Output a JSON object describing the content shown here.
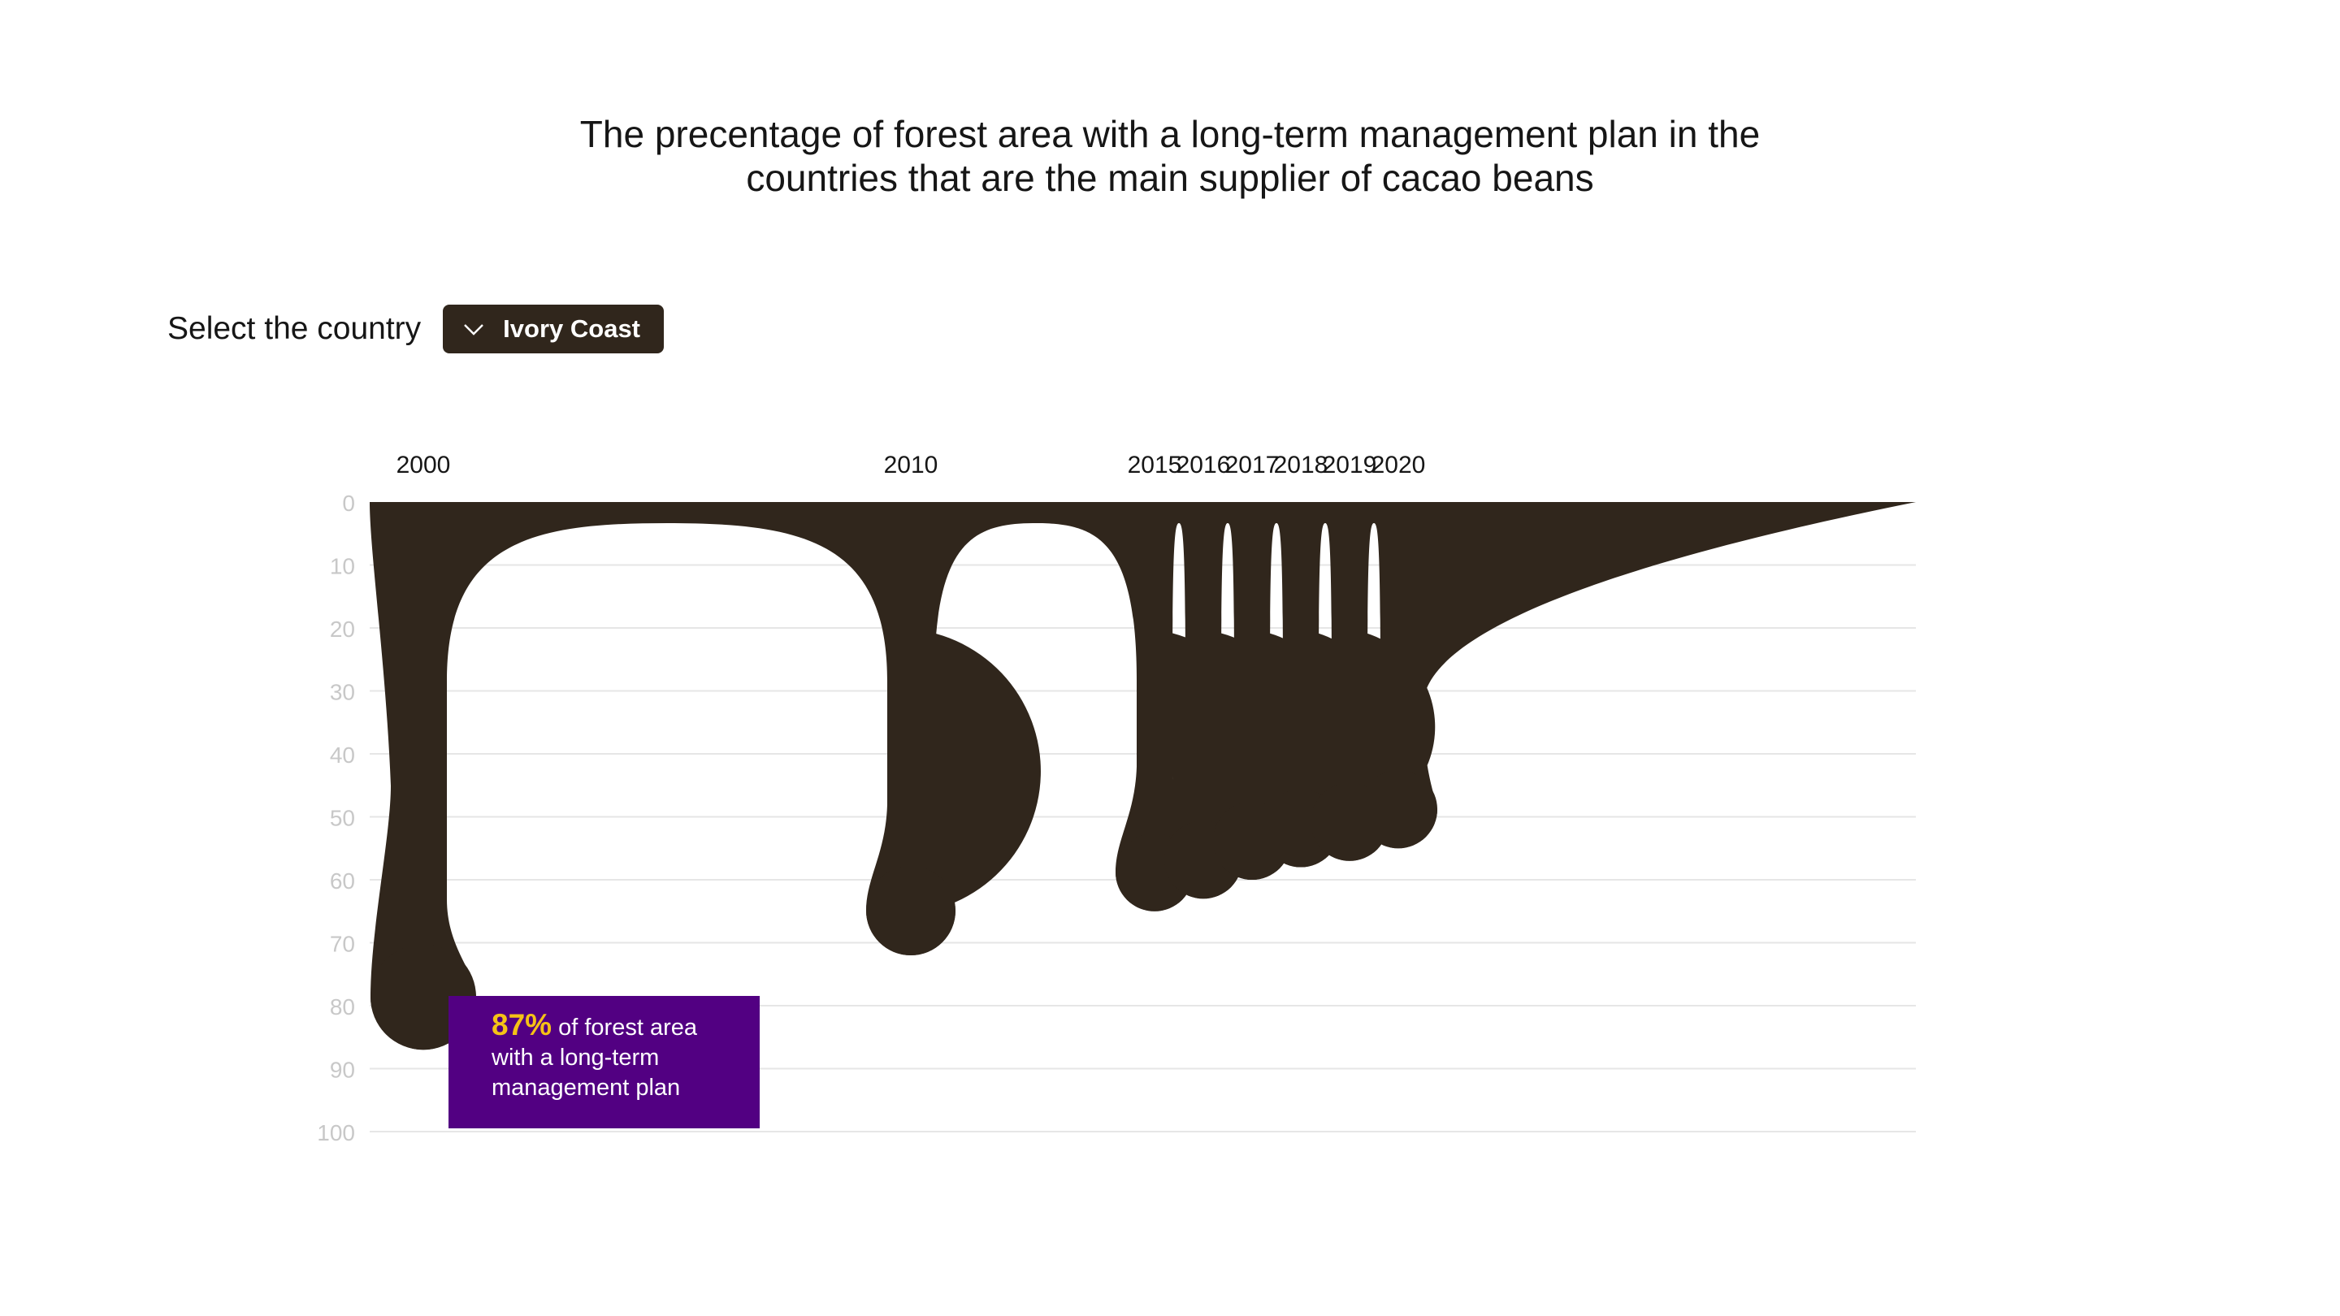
{
  "title": {
    "line1": "The precentage of forest area with a long-term management plan in the",
    "line2": "countries that are the main supplier of cacao beans"
  },
  "selector": {
    "label": "Select the country",
    "selected": "Ivory Coast",
    "icon": "chevron-down-icon"
  },
  "tooltip": {
    "value_text": "87%",
    "rest_line1": "of forest area",
    "rest_line2": "with a long-term",
    "rest_line3": "management plan"
  },
  "colors": {
    "drip": "#30261c",
    "tooltip_bg": "#520082",
    "highlight": "#f5c216",
    "grid": "#e6e6e6",
    "tick": "#c8c8c8"
  },
  "chart_data": {
    "type": "area",
    "title": "The precentage of forest area with a long-term management plan in the countries that are the main supplier of cacao beans",
    "x": [
      "2000",
      "2010",
      "2015",
      "2016",
      "2017",
      "2018",
      "2019",
      "2020"
    ],
    "x_numeric": [
      2000,
      2010,
      2015,
      2016,
      2017,
      2018,
      2019,
      2020
    ],
    "series": [
      {
        "values": [
          87,
          72,
          65,
          63,
          60,
          58,
          57,
          55
        ]
      }
    ],
    "yticks": [
      0,
      10,
      20,
      30,
      40,
      50,
      60,
      70,
      80,
      90,
      100
    ],
    "ylim": [
      0,
      100
    ],
    "y_inverted": true,
    "xaxis_position": "top",
    "grid": true,
    "legend": "none",
    "annotation": "87% of forest area with a long-term management plan"
  }
}
